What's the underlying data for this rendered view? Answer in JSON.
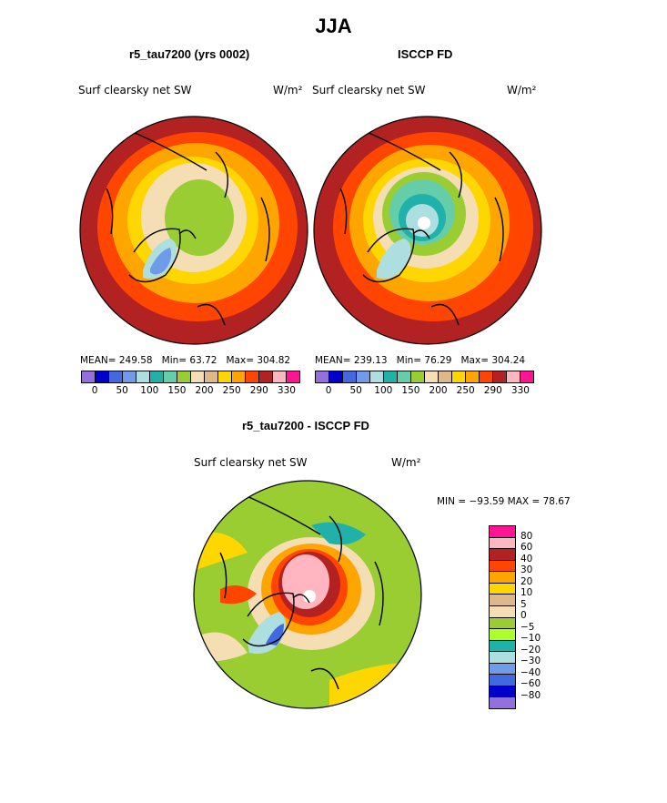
{
  "title": "JJA",
  "panel_left": {
    "subtitle": "r5_tau7200 (yrs 0002)",
    "field": "Surf clearsky net SW",
    "units": "W/m²",
    "mean_label": "MEAN=",
    "mean": "249.58",
    "min_label": "Min=",
    "min": "63.72",
    "max_label": "Max=",
    "max": "304.82"
  },
  "panel_right": {
    "subtitle": "ISCCP FD",
    "field": "Surf clearsky net SW",
    "units": "W/m²",
    "mean_label": "MEAN=",
    "mean": "239.13",
    "min_label": "Min=",
    "min": "76.29",
    "max_label": "Max=",
    "max": "304.24"
  },
  "colorbar_top": {
    "colors": [
      "#9370db",
      "#0000cd",
      "#4169e1",
      "#6f9be8",
      "#aedfe0",
      "#20b2aa",
      "#66cdaa",
      "#9acd32",
      "#f5deb3",
      "#deb887",
      "#ffd700",
      "#ffa500",
      "#ff4500",
      "#b22222",
      "#ffb6c1",
      "#ff1493"
    ],
    "tick_labels": [
      "0",
      "50",
      "100",
      "150",
      "200",
      "250",
      "290",
      "330"
    ]
  },
  "panel_diff": {
    "subtitle": "r5_tau7200 - ISCCP FD",
    "field": "Surf clearsky net SW",
    "units": "W/m²",
    "minmax": "MIN = −93.59 MAX =   78.67"
  },
  "colorbar_diff": {
    "colors": [
      "#ff1493",
      "#ffb6c1",
      "#b22222",
      "#ff4500",
      "#ffa500",
      "#ffd700",
      "#deb887",
      "#f5deb3",
      "#9acd32",
      "#adff2f",
      "#20b2aa",
      "#aedfe0",
      "#6f9be8",
      "#4169e1",
      "#0000cd",
      "#9370db"
    ],
    "tick_labels": [
      "80",
      "60",
      "40",
      "30",
      "20",
      "10",
      "5",
      "0",
      "−5",
      "−10",
      "−20",
      "−30",
      "−40",
      "−60",
      "−80"
    ]
  }
}
